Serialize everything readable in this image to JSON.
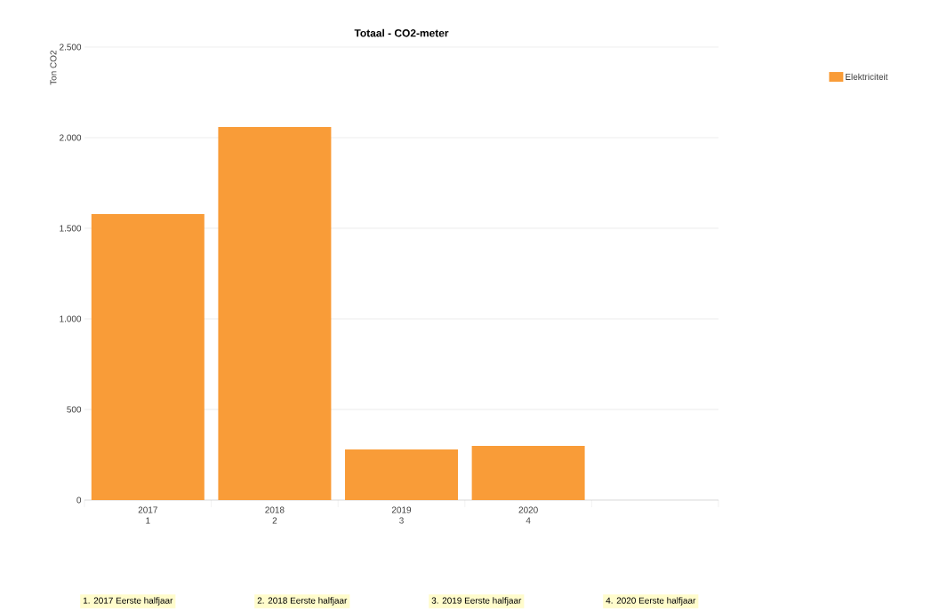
{
  "chart_data": {
    "type": "bar",
    "title": "Totaal - CO2-meter",
    "ylabel": "Ton CO2",
    "categories": [
      "2017 1",
      "2018 2",
      "2019 3",
      "2020 4",
      null
    ],
    "series": [
      {
        "name": "Elektriciteit",
        "color": "#f99c38",
        "values": [
          1578,
          2059,
          279,
          299,
          null
        ]
      }
    ],
    "ylim": [
      0,
      2500
    ],
    "yticks": [
      {
        "value": 0,
        "label": "0"
      },
      {
        "value": 500,
        "label": "500"
      },
      {
        "value": 1000,
        "label": "1.000"
      },
      {
        "value": 1500,
        "label": "1.500"
      },
      {
        "value": 2000,
        "label": "2.000"
      },
      {
        "value": 2500,
        "label": "2.500"
      }
    ],
    "grid": "y",
    "legend": "top right",
    "annotations": [
      "1. 2017 Eerste halfjaar",
      "2. 2018 Eerste halfjaar",
      "3. 2019 Eerste halfjaar",
      "4. 2020 Eerste halfjaar"
    ]
  }
}
